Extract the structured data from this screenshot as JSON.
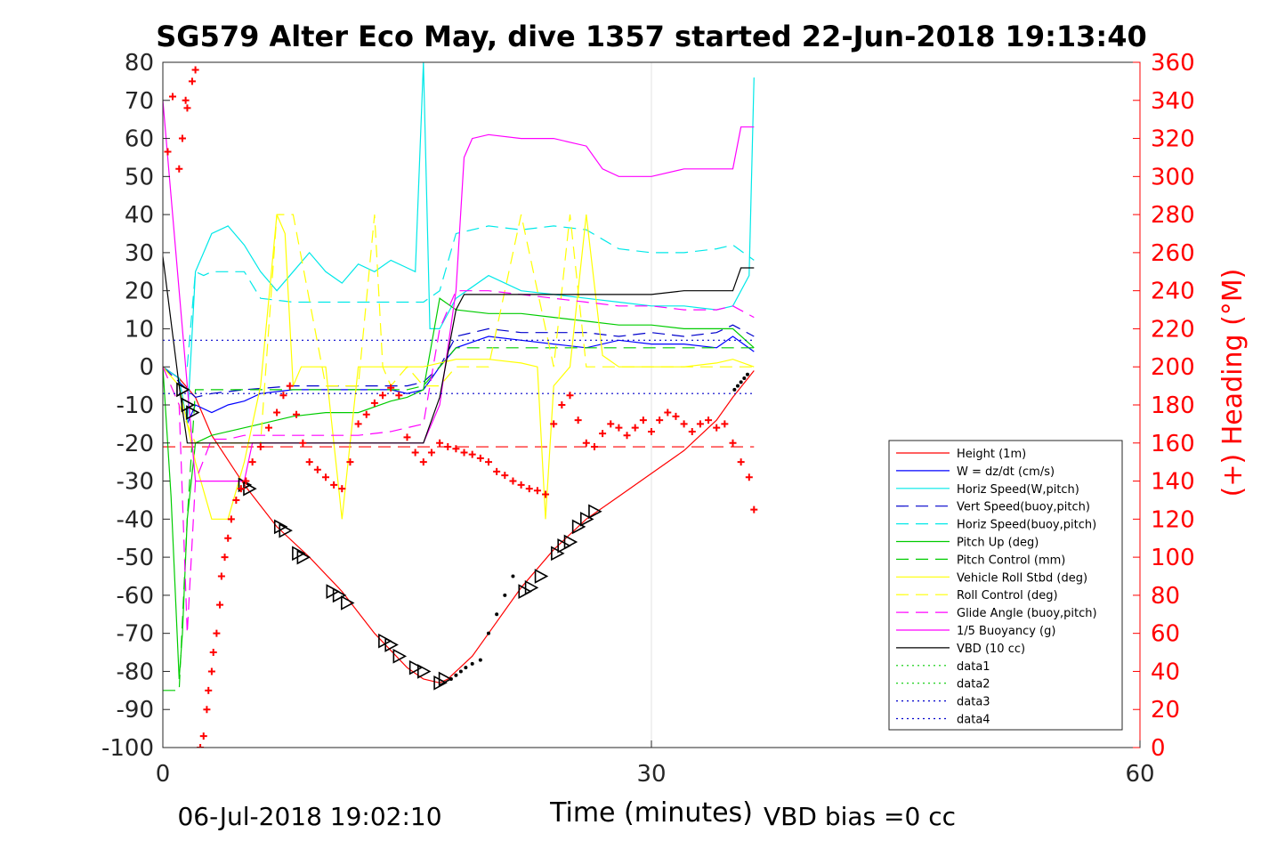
{
  "chart_data": {
    "type": "line",
    "title": "SG579 Alter Eco May, dive 1357 started 22-Jun-2018 19:13:40",
    "xlabel": "Time (minutes)",
    "ylabel": "",
    "y2label": "(+) Heading (°M)",
    "xlim": [
      0,
      60
    ],
    "ylim": [
      -100,
      80
    ],
    "y2lim": [
      0,
      360
    ],
    "xticks": [
      "0",
      "30",
      "60"
    ],
    "yticks": [
      "80",
      "70",
      "60",
      "50",
      "40",
      "30",
      "20",
      "10",
      "0",
      "-10",
      "-20",
      "-30",
      "-40",
      "-50",
      "-60",
      "-70",
      "-80",
      "-90",
      "-100"
    ],
    "y2ticks": [
      "360",
      "340",
      "320",
      "300",
      "280",
      "260",
      "240",
      "220",
      "200",
      "180",
      "160",
      "140",
      "120",
      "100",
      "80",
      "60",
      "40",
      "20",
      "0"
    ],
    "grid": "x-only",
    "legend_position": "lower-right",
    "footer_left": "06-Jul-2018 19:02:10",
    "footer_right": "VBD bias =0 cc",
    "heading_color": "#ff0000",
    "series": [
      {
        "name": "Height (1m)",
        "color": "#ff0000",
        "dash": "",
        "x": [
          0,
          1,
          2,
          3,
          5,
          7,
          9,
          11,
          13,
          15,
          16,
          17,
          17.5,
          18,
          19,
          20,
          22,
          24,
          26,
          28,
          30,
          32,
          34,
          35,
          36.3
        ],
        "y": [
          0,
          -3,
          -8,
          -18,
          -31,
          -42,
          -50,
          -59,
          -70,
          -79,
          -82,
          -83,
          -82,
          -80,
          -76,
          -70,
          -58,
          -48,
          -40,
          -34,
          -28,
          -22,
          -14,
          -8,
          -1
        ]
      },
      {
        "name": "W = dz/dt (cm/s)",
        "color": "#0000ff",
        "dash": "",
        "x": [
          0,
          1,
          1.5,
          2,
          3,
          4,
          5,
          6,
          8,
          10,
          12,
          14,
          15,
          16,
          16.5,
          17,
          18,
          20,
          22,
          24,
          26,
          28,
          30,
          32,
          34,
          35,
          36.3
        ],
        "y": [
          0,
          -3,
          -15,
          -10,
          -12,
          -10,
          -9,
          -7,
          -6,
          -6,
          -6,
          -6,
          -7,
          -6,
          -3,
          0,
          5,
          8,
          7,
          6,
          5,
          7,
          6,
          6,
          5,
          8,
          4
        ]
      },
      {
        "name": "Horiz Speed(W,pitch)",
        "color": "#00e8e8",
        "dash": "",
        "x": [
          0,
          1,
          1.5,
          2,
          2.5,
          3,
          4,
          5,
          6,
          7,
          8,
          9,
          10,
          11,
          12,
          13,
          14,
          15,
          15.5,
          16,
          16.4,
          17,
          18,
          20,
          22,
          24,
          26,
          28,
          30,
          32,
          34,
          35,
          36,
          36.3
        ],
        "y": [
          0,
          -3,
          -15,
          25,
          30,
          35,
          37,
          32,
          25,
          20,
          25,
          30,
          25,
          22,
          27,
          25,
          28,
          26,
          25,
          80,
          10,
          10,
          18,
          24,
          20,
          19,
          18,
          17,
          16,
          16,
          15,
          16,
          24,
          76
        ]
      },
      {
        "name": "Vert Speed(buoy,pitch)",
        "color": "#0000cc",
        "dash": "14,8",
        "x": [
          0,
          1,
          2,
          3,
          5,
          8,
          10,
          12,
          14,
          15,
          16,
          17,
          18,
          20,
          22,
          24,
          26,
          28,
          30,
          32,
          34,
          35,
          36.3
        ],
        "y": [
          0,
          -4,
          -8,
          -7,
          -6,
          -5,
          -5,
          -5,
          -5,
          -5,
          -4,
          0,
          8,
          10,
          9,
          9,
          9,
          8,
          9,
          8,
          9,
          11,
          8
        ]
      },
      {
        "name": "Horiz Speed(buoy,pitch)",
        "color": "#00e8e8",
        "dash": "14,8",
        "x": [
          1.5,
          2,
          2.5,
          3,
          4,
          5,
          6,
          8,
          10,
          12,
          14,
          15,
          16,
          17,
          18,
          20,
          22,
          24,
          26,
          28,
          30,
          32,
          34,
          35,
          36.3
        ],
        "y": [
          0,
          25,
          24,
          25,
          25,
          25,
          18,
          17,
          17,
          17,
          17,
          17,
          17,
          20,
          35,
          37,
          36,
          37,
          36,
          31,
          30,
          30,
          31,
          32,
          28
        ]
      },
      {
        "name": "Pitch Up (deg)",
        "color": "#00cc00",
        "dash": "",
        "x": [
          0,
          0.5,
          1,
          1.2,
          1.5,
          2,
          3,
          4,
          5,
          6,
          8,
          10,
          12,
          14,
          15,
          16,
          17,
          18,
          20,
          22,
          24,
          26,
          28,
          30,
          32,
          34,
          35,
          36.3
        ],
        "y": [
          0,
          -34,
          -82,
          -70,
          -40,
          -20,
          -18,
          -17,
          -16,
          -15,
          -13,
          -12,
          -12,
          -9,
          -8,
          -6,
          18,
          15,
          14,
          14,
          13,
          12,
          11,
          11,
          10,
          10,
          10,
          5
        ]
      },
      {
        "name": "Pitch Control (mm)",
        "color": "#00cc00",
        "dash": "14,8",
        "x": [
          0,
          1,
          1.5,
          2,
          4,
          8,
          12,
          15,
          16,
          17,
          18,
          20,
          24,
          28,
          32,
          36.3
        ],
        "y": [
          -85,
          -85,
          -40,
          -6,
          -6,
          -6,
          -6,
          -6,
          -5,
          0,
          5,
          5,
          5,
          5,
          5,
          5
        ]
      },
      {
        "name": "Vehicle Roll Stbd (deg)",
        "color": "#ffff00",
        "dash": "",
        "x": [
          0,
          1,
          2,
          3,
          4,
          5,
          6,
          7,
          7.5,
          8,
          8.5,
          9,
          10,
          11,
          12,
          13,
          14,
          15,
          16,
          17,
          18,
          20,
          22,
          23,
          23.5,
          24,
          25,
          26,
          27,
          28,
          30,
          32,
          34,
          35,
          36.3
        ],
        "y": [
          0,
          -5,
          -25,
          -40,
          -40,
          -25,
          -5,
          40,
          35,
          -5,
          0,
          0,
          0,
          -40,
          0,
          0,
          0,
          0,
          0,
          1,
          2,
          2,
          1,
          0,
          -40,
          -5,
          0,
          40,
          3,
          0,
          0,
          0,
          1,
          2,
          0
        ]
      },
      {
        "name": "Roll Control (deg)",
        "color": "#ffff00",
        "dash": "14,8",
        "x": [
          0,
          2,
          4,
          6,
          7,
          8,
          10,
          12,
          13,
          13.5,
          14,
          15,
          16,
          17,
          18,
          20,
          22,
          24,
          25,
          26,
          28,
          30,
          34,
          36.3
        ],
        "y": [
          0,
          -20,
          -20,
          -20,
          40,
          40,
          -5,
          -5,
          40,
          0,
          -5,
          0,
          -5,
          -5,
          0,
          0,
          40,
          0,
          40,
          0,
          0,
          0,
          0,
          0
        ]
      },
      {
        "name": "Glide Angle (buoy,pitch)",
        "color": "#ff00ff",
        "dash": "14,8",
        "x": [
          0,
          1,
          1.5,
          2,
          3,
          4,
          5,
          6,
          8,
          10,
          12,
          14,
          15,
          16,
          17,
          18,
          20,
          22,
          24,
          26,
          28,
          30,
          32,
          34,
          35,
          36.3
        ],
        "y": [
          0,
          -10,
          -70,
          -30,
          -19,
          -19,
          -18,
          -18,
          -18,
          -18,
          -18,
          -17,
          -16,
          -15,
          10,
          20,
          20,
          19,
          18,
          17,
          16,
          16,
          15,
          15,
          16,
          13
        ]
      },
      {
        "name": "1/5 Buoyancy (g)",
        "color": "#ff00ff",
        "dash": "",
        "x": [
          0,
          1,
          2,
          3,
          5,
          5.5,
          6,
          8,
          10,
          12,
          14,
          15,
          16,
          17,
          18,
          18.5,
          19,
          20,
          22,
          24,
          26,
          27,
          28,
          30,
          32,
          34,
          35,
          35.5,
          36.3
        ],
        "y": [
          70,
          20,
          -30,
          -30,
          -30,
          -20,
          -20,
          -20,
          -20,
          -20,
          -20,
          -20,
          -20,
          -10,
          20,
          55,
          60,
          61,
          60,
          60,
          58,
          52,
          50,
          50,
          52,
          52,
          52,
          63,
          63
        ]
      },
      {
        "name": "VBD (10 cc)",
        "color": "#000000",
        "dash": "",
        "x": [
          0,
          1,
          1.5,
          2,
          4,
          8,
          12,
          16,
          17,
          18,
          18.5,
          19,
          20,
          24,
          28,
          30,
          32,
          34,
          35,
          35.5,
          36.3
        ],
        "y": [
          29,
          -5,
          -20,
          -20,
          -20,
          -20,
          -20,
          -20,
          -8,
          15,
          19,
          19,
          19,
          19,
          19,
          19,
          20,
          20,
          20,
          26,
          26
        ]
      },
      {
        "name": "data1",
        "color": "#00cc00",
        "dash": "2,4",
        "x": [],
        "y": []
      },
      {
        "name": "data2",
        "color": "#00cc00",
        "dash": "2,4",
        "x": [],
        "y": []
      },
      {
        "name": "data3",
        "color": "#0000cc",
        "dash": "2,4",
        "x": [
          0,
          36.3
        ],
        "y": [
          7,
          7
        ]
      },
      {
        "name": "data4",
        "color": "#0000cc",
        "dash": "2,4",
        "x": [
          0,
          36.3
        ],
        "y": [
          -7,
          -7
        ]
      }
    ],
    "reference_lines": [
      {
        "y": -21,
        "color": "#ff0000",
        "dash": "14,8",
        "x": [
          0,
          36.3
        ]
      }
    ],
    "heading_points": {
      "x": [
        0.3,
        0.6,
        1.0,
        1.2,
        1.4,
        1.5,
        1.8,
        2.0,
        2.3,
        2.5,
        2.7,
        2.8,
        3.0,
        3.1,
        3.3,
        3.5,
        3.6,
        3.8,
        4.0,
        4.2,
        4.5,
        4.8,
        5.1,
        5.5,
        6.0,
        6.5,
        7.0,
        7.4,
        7.8,
        8.2,
        8.6,
        9.0,
        9.5,
        10.0,
        10.5,
        11.0,
        11.5,
        12.0,
        12.5,
        13.0,
        13.5,
        14.0,
        14.5,
        15.0,
        15.5,
        16.0,
        16.5,
        17.0,
        17.5,
        18.0,
        18.5,
        19.0,
        19.5,
        20.0,
        20.5,
        21.0,
        21.5,
        22.0,
        22.5,
        23.0,
        23.5,
        24.0,
        24.5,
        25.0,
        25.5,
        26.0,
        26.5,
        27.0,
        27.5,
        28.0,
        28.5,
        29.0,
        29.5,
        30.0,
        30.5,
        31.0,
        31.5,
        32.0,
        32.5,
        33.0,
        33.5,
        34.0,
        34.5,
        35.0,
        35.5,
        36.0,
        36.3
      ],
      "y": [
        313,
        342,
        304,
        320,
        340,
        336,
        350,
        356,
        0,
        6,
        20,
        30,
        40,
        50,
        60,
        75,
        90,
        100,
        110,
        120,
        130,
        136,
        140,
        150,
        158,
        168,
        176,
        185,
        190,
        175,
        160,
        150,
        146,
        142,
        138,
        136,
        150,
        170,
        175,
        181,
        185,
        189,
        185,
        163,
        155,
        150,
        155,
        160,
        158,
        157,
        155,
        154,
        152,
        150,
        145,
        143,
        140,
        138,
        136,
        135,
        133,
        170,
        180,
        185,
        172,
        160,
        158,
        165,
        170,
        168,
        164,
        168,
        172,
        166,
        172,
        176,
        174,
        170,
        166,
        170,
        172,
        168,
        170,
        160,
        150,
        142,
        125
      ]
    },
    "triangle_markers": {
      "x": [
        1.2,
        1.5,
        1.8,
        5.0,
        5.3,
        7.2,
        7.5,
        8.3,
        8.6,
        10.4,
        10.8,
        11.3,
        13.6,
        14.0,
        14.5,
        15.5,
        16.0,
        17.0,
        17.3,
        22.2,
        22.6,
        23.2,
        24.2,
        24.6,
        25.0,
        25.5,
        26.0,
        26.5
      ],
      "y": [
        -6,
        -10,
        -12,
        -31,
        -32,
        -42,
        -43,
        -49,
        -50,
        -59,
        -60,
        -62,
        -72,
        -73,
        -76,
        -79,
        -80,
        -83,
        -82,
        -59,
        -58,
        -55,
        -49,
        -47,
        -46,
        -42,
        -40,
        -38
      ]
    },
    "dot_markers": {
      "x": [
        17.7,
        18.0,
        18.3,
        18.6,
        19.0,
        19.5,
        20.0,
        20.5,
        21.0,
        21.5,
        35.1,
        35.3,
        35.5,
        35.7,
        35.9
      ],
      "y": [
        -82,
        -81,
        -80,
        -79,
        -78,
        -77,
        -70,
        -65,
        -60,
        -55,
        -6,
        -5,
        -4,
        -3,
        -2
      ]
    }
  }
}
